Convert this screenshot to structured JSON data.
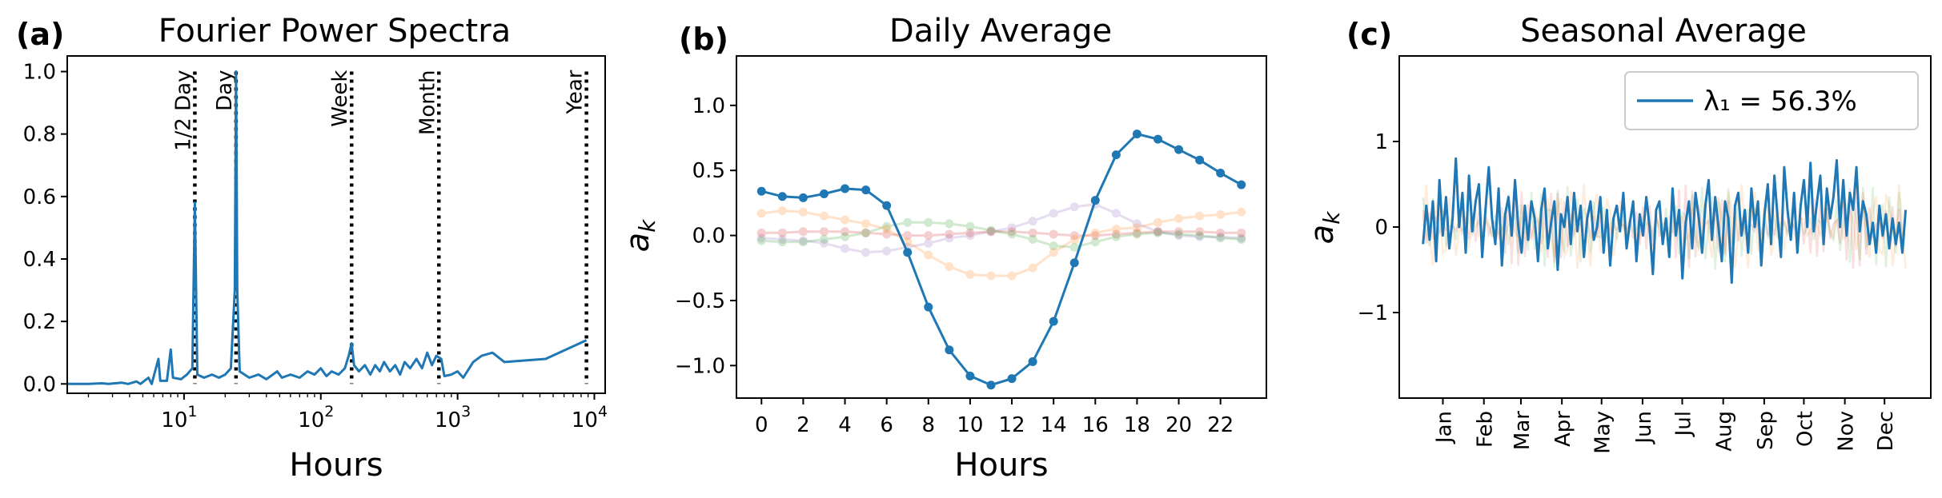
{
  "chart_data": [
    {
      "type": "line",
      "panel_label": "(a)",
      "title": "Fourier Power Spectra",
      "xlabel": "Hours",
      "ylabel": "",
      "xscale": "log",
      "xlim": [
        1.4,
        12000
      ],
      "ylim": [
        -0.03,
        1.05
      ],
      "x_ticks": [
        10,
        100,
        1000,
        10000
      ],
      "x_tick_labels": [
        {
          "base": "10",
          "exp": "1"
        },
        {
          "base": "10",
          "exp": "2"
        },
        {
          "base": "10",
          "exp": "3"
        },
        {
          "base": "10",
          "exp": "4"
        }
      ],
      "y_ticks": [
        "0.0",
        "0.2",
        "0.4",
        "0.6",
        "0.8",
        "1.0"
      ],
      "reference_lines": [
        {
          "label": "1/2 Day",
          "x": 12
        },
        {
          "label": "Day",
          "x": 24
        },
        {
          "label": "Week",
          "x": 168
        },
        {
          "label": "Month",
          "x": 730
        },
        {
          "label": "Year",
          "x": 8760
        }
      ],
      "series": [
        {
          "color": "#1f77b4",
          "points": [
            [
              1.4,
              0.0
            ],
            [
              2.0,
              0.0
            ],
            [
              2.5,
              0.002
            ],
            [
              2.8,
              0.0
            ],
            [
              3.5,
              0.004
            ],
            [
              3.9,
              0.0
            ],
            [
              4.5,
              0.008
            ],
            [
              4.8,
              0.0
            ],
            [
              5.5,
              0.02
            ],
            [
              5.8,
              0.0
            ],
            [
              6.5,
              0.08
            ],
            [
              6.7,
              0.01
            ],
            [
              7.5,
              0.01
            ],
            [
              8.0,
              0.11
            ],
            [
              8.3,
              0.02
            ],
            [
              9.5,
              0.015
            ],
            [
              10.5,
              0.03
            ],
            [
              11.5,
              0.05
            ],
            [
              12,
              0.58
            ],
            [
              12.5,
              0.03
            ],
            [
              14,
              0.02
            ],
            [
              16,
              0.03
            ],
            [
              18,
              0.02
            ],
            [
              20,
              0.03
            ],
            [
              22,
              0.05
            ],
            [
              23.5,
              0.3
            ],
            [
              24,
              1.0
            ],
            [
              24.5,
              0.3
            ],
            [
              25.5,
              0.04
            ],
            [
              30,
              0.02
            ],
            [
              35,
              0.03
            ],
            [
              40,
              0.015
            ],
            [
              48,
              0.04
            ],
            [
              52,
              0.02
            ],
            [
              60,
              0.03
            ],
            [
              70,
              0.02
            ],
            [
              80,
              0.04
            ],
            [
              90,
              0.03
            ],
            [
              100,
              0.05
            ],
            [
              110,
              0.025
            ],
            [
              120,
              0.04
            ],
            [
              135,
              0.03
            ],
            [
              150,
              0.05
            ],
            [
              160,
              0.09
            ],
            [
              168,
              0.13
            ],
            [
              175,
              0.06
            ],
            [
              190,
              0.04
            ],
            [
              210,
              0.06
            ],
            [
              230,
              0.03
            ],
            [
              250,
              0.06
            ],
            [
              270,
              0.04
            ],
            [
              290,
              0.07
            ],
            [
              320,
              0.04
            ],
            [
              350,
              0.06
            ],
            [
              380,
              0.03
            ],
            [
              410,
              0.07
            ],
            [
              450,
              0.05
            ],
            [
              500,
              0.08
            ],
            [
              550,
              0.05
            ],
            [
              600,
              0.1
            ],
            [
              650,
              0.06
            ],
            [
              700,
              0.09
            ],
            [
              760,
              0.08
            ],
            [
              800,
              0.025
            ],
            [
              900,
              0.03
            ],
            [
              1000,
              0.04
            ],
            [
              1100,
              0.02
            ],
            [
              1300,
              0.07
            ],
            [
              1500,
              0.09
            ],
            [
              1800,
              0.1
            ],
            [
              2200,
              0.07
            ],
            [
              4400,
              0.08
            ],
            [
              8760,
              0.14
            ]
          ]
        }
      ]
    },
    {
      "type": "line",
      "panel_label": "(b)",
      "title": "Daily Average",
      "xlabel": "Hours",
      "ylabel": "a_k",
      "xlim": [
        -1.2,
        24.2
      ],
      "ylim": [
        -1.25,
        1.38
      ],
      "x_ticks": [
        "0",
        "2",
        "4",
        "6",
        "8",
        "10",
        "12",
        "14",
        "16",
        "18",
        "20",
        "22"
      ],
      "y_ticks": [
        "−1.0",
        "−0.5",
        "0.0",
        "0.5",
        "1.0"
      ],
      "x": [
        0,
        1,
        2,
        3,
        4,
        5,
        6,
        7,
        8,
        9,
        10,
        11,
        12,
        13,
        14,
        15,
        16,
        17,
        18,
        19,
        20,
        21,
        22,
        23
      ],
      "series": [
        {
          "color": "#1f77b4",
          "alpha": 1.0,
          "values": [
            0.34,
            0.3,
            0.29,
            0.32,
            0.36,
            0.35,
            0.23,
            -0.13,
            -0.55,
            -0.88,
            -1.08,
            -1.15,
            -1.1,
            -0.97,
            -0.66,
            -0.21,
            0.27,
            0.62,
            0.78,
            0.74,
            0.66,
            0.58,
            0.48,
            0.39
          ]
        },
        {
          "color": "#ff7f0e",
          "alpha": 0.22,
          "values": [
            0.17,
            0.19,
            0.18,
            0.15,
            0.12,
            0.09,
            0.05,
            -0.05,
            -0.15,
            -0.24,
            -0.3,
            -0.31,
            -0.31,
            -0.25,
            -0.13,
            -0.03,
            0.02,
            0.05,
            0.06,
            0.1,
            0.13,
            0.15,
            0.16,
            0.18
          ]
        },
        {
          "color": "#2ca02c",
          "alpha": 0.22,
          "values": [
            -0.04,
            -0.05,
            -0.05,
            -0.03,
            -0.01,
            0.02,
            0.07,
            0.1,
            0.1,
            0.09,
            0.07,
            0.04,
            0.01,
            -0.03,
            -0.08,
            -0.09,
            -0.05,
            -0.01,
            0.01,
            0.02,
            0.01,
            0.0,
            -0.02,
            -0.03
          ]
        },
        {
          "color": "#d62728",
          "alpha": 0.22,
          "values": [
            0.02,
            0.02,
            0.03,
            0.03,
            0.03,
            0.02,
            0.01,
            0.0,
            0.0,
            0.01,
            0.02,
            0.03,
            0.03,
            0.02,
            0.01,
            0.0,
            0.0,
            0.01,
            0.02,
            0.03,
            0.03,
            0.03,
            0.02,
            0.02
          ]
        },
        {
          "color": "#9467bd",
          "alpha": 0.22,
          "values": [
            -0.02,
            -0.03,
            -0.04,
            -0.06,
            -0.1,
            -0.13,
            -0.12,
            -0.09,
            -0.06,
            -0.02,
            0.0,
            0.03,
            0.06,
            0.11,
            0.17,
            0.22,
            0.24,
            0.17,
            0.09,
            0.03,
            0.0,
            -0.01,
            -0.01,
            -0.02
          ]
        }
      ]
    },
    {
      "type": "line",
      "panel_label": "(c)",
      "title": "Seasonal Average",
      "xlabel": "",
      "ylabel": "a_k",
      "xlim": [
        -18,
        384
      ],
      "ylim": [
        -2.0,
        2.0
      ],
      "y_ticks": [
        "−1",
        "0",
        "1"
      ],
      "x_tick_labels": [
        "Jan",
        "Feb",
        "Mar",
        "Apr",
        "May",
        "Jun",
        "Jul",
        "Aug",
        "Sep",
        "Oct",
        "Nov",
        "Dec"
      ],
      "x_tick_days": [
        15,
        46,
        74,
        105,
        135,
        166,
        196,
        227,
        258,
        288,
        319,
        349
      ],
      "legend": {
        "label": "λ₁ = 56.3%",
        "location": "upper right"
      },
      "series": [
        {
          "color": "#1f77b4",
          "alpha": 1.0,
          "values": [
            -0.2,
            0.25,
            -0.15,
            0.3,
            -0.4,
            0.55,
            -0.1,
            0.35,
            -0.25,
            0.1,
            0.8,
            0.0,
            0.4,
            -0.3,
            0.6,
            -0.05,
            0.3,
            0.5,
            -0.35,
            0.2,
            0.7,
            0.1,
            -0.2,
            0.45,
            -0.45,
            0.15,
            0.35,
            -0.1,
            0.55,
            0.0,
            -0.3,
            0.25,
            -0.15,
            0.3,
            0.1,
            -0.4,
            0.2,
            0.45,
            -0.25,
            0.05,
            0.3,
            -0.5,
            0.15,
            0.0,
            0.35,
            -0.2,
            0.4,
            -0.05,
            0.25,
            -0.35,
            0.1,
            0.3,
            -0.15,
            0.0,
            0.35,
            -0.3,
            0.2,
            -0.45,
            0.1,
            0.25,
            -0.05,
            0.4,
            -0.25,
            0.05,
            0.3,
            -0.4,
            0.15,
            -0.1,
            0.35,
            0.0,
            -0.55,
            0.2,
            0.3,
            -0.2,
            0.1,
            -0.35,
            0.45,
            -0.1,
            0.2,
            -0.6,
            0.05,
            0.3,
            -0.25,
            0.4,
            0.1,
            -0.3,
            0.25,
            0.55,
            -0.15,
            0.35,
            0.0,
            -0.4,
            0.3,
            0.1,
            -0.65,
            0.25,
            0.4,
            -0.1,
            0.2,
            -0.3,
            0.45,
            0.0,
            0.3,
            -0.45,
            0.15,
            0.5,
            -0.2,
            0.6,
            0.1,
            -0.35,
            0.7,
            0.2,
            -0.15,
            0.4,
            -0.3,
            0.25,
            0.55,
            0.0,
            0.75,
            -0.05,
            0.3,
            0.6,
            -0.2,
            0.45,
            0.1,
            0.35,
            0.78,
            0.0,
            0.55,
            -0.1,
            0.4,
            0.2,
            0.7,
            -0.05,
            0.3,
            0.15,
            -0.2,
            0.05,
            -0.3,
            0.25,
            -0.1,
            0.15,
            -0.25,
            0.1,
            -0.2,
            0.05,
            -0.3,
            0.2
          ]
        }
      ],
      "faded_series_colors": [
        "#ff7f0e",
        "#2ca02c",
        "#d62728"
      ]
    }
  ]
}
